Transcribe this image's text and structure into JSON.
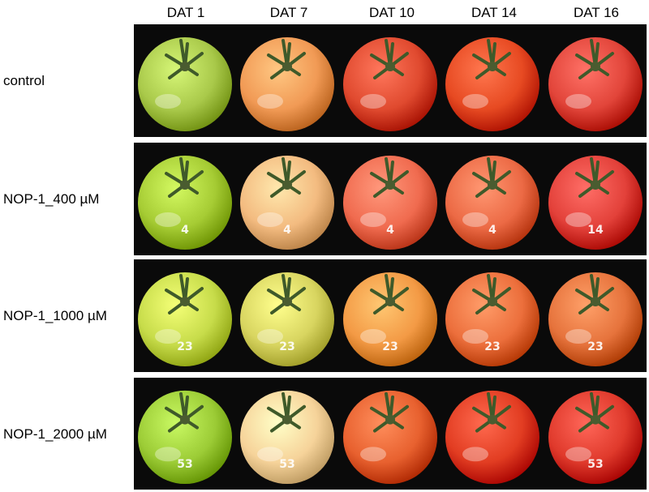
{
  "columns": [
    "DAT 1",
    "DAT 7",
    "DAT 10",
    "DAT 14",
    "DAT 16"
  ],
  "rows": [
    {
      "label": "control",
      "fruit_labels": [
        "",
        "",
        "",
        "",
        ""
      ],
      "colors": [
        "#a9c94a",
        "#f19a55",
        "#e04a2f",
        "#e74a22",
        "#e2453a"
      ]
    },
    {
      "label": "NOP-1_400 µM",
      "fruit_labels": [
        "4",
        "4",
        "4",
        "4",
        "14"
      ],
      "colors": [
        "#a6cc34",
        "#f3bb80",
        "#f06b4f",
        "#ec6a45",
        "#e3413a"
      ]
    },
    {
      "label": "NOP-1_1000 µM",
      "fruit_labels": [
        "23",
        "23",
        "23",
        "23",
        "23"
      ],
      "colors": [
        "#c7dc4a",
        "#d8d560",
        "#f39a45",
        "#ec6f3c",
        "#e6733c"
      ]
    },
    {
      "label": "NOP-1_2000 µM",
      "fruit_labels": [
        "53",
        "53",
        "",
        "",
        "53"
      ],
      "colors": [
        "#9ccc36",
        "#f6d39a",
        "#e8612f",
        "#e23d22",
        "#e03a2c"
      ]
    }
  ]
}
